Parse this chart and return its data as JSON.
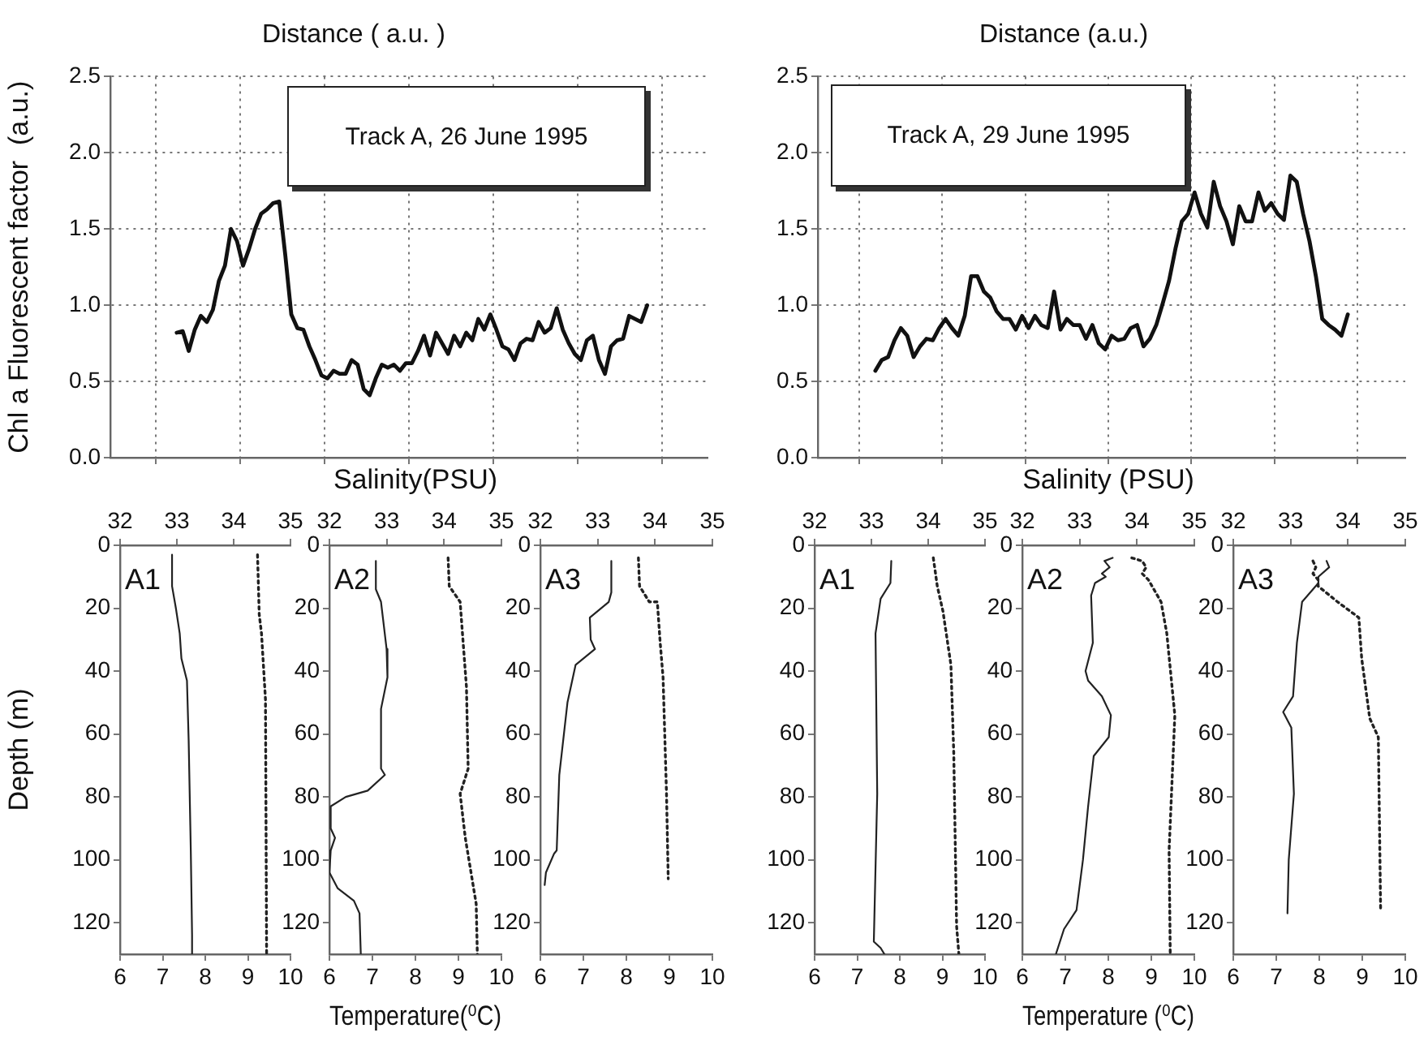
{
  "chart_data": [
    {
      "type": "line",
      "title": "Distance ( a.u. )",
      "ylabel": "Chl a Fluorescent factor  (a.u.)",
      "annotations": [
        "Track A, 26 June 1995"
      ],
      "ylim": [
        0,
        2.5
      ],
      "yticks": [
        {
          "value": 0,
          "label": "0.0"
        },
        {
          "value": 0.5,
          "label": "0.5"
        },
        {
          "value": 1,
          "label": "1.0"
        },
        {
          "value": 1.5,
          "label": "1.5"
        },
        {
          "value": 2,
          "label": "2.0"
        },
        {
          "value": 2.5,
          "label": "2.5"
        }
      ],
      "tick_labels": "y",
      "grid": true,
      "line_style": "solid",
      "categories": [
        null,
        null,
        null,
        null,
        null,
        null,
        null,
        null,
        null,
        null,
        null,
        null,
        null,
        null,
        null,
        null,
        null,
        null,
        null,
        null,
        null,
        null,
        null,
        null,
        null,
        null,
        null,
        null,
        null,
        null,
        null,
        null,
        null,
        null,
        null,
        null,
        null,
        null,
        null,
        null,
        null,
        null,
        null,
        null,
        null,
        null,
        null,
        null,
        null,
        null,
        null,
        null,
        null,
        null,
        null,
        null,
        null,
        null,
        null,
        null,
        null,
        null,
        null,
        null,
        null,
        null,
        null,
        null,
        null,
        null,
        null,
        null,
        null,
        null,
        null,
        null,
        null,
        null,
        null
      ],
      "series": [
        {
          "color": "#111111",
          "values": [
            0.82,
            0.83,
            0.7,
            0.84,
            0.93,
            0.89,
            0.97,
            1.16,
            1.26,
            1.5,
            1.42,
            1.26,
            1.37,
            1.5,
            1.6,
            1.63,
            1.67,
            1.68,
            1.33,
            0.94,
            0.85,
            0.84,
            0.73,
            0.64,
            0.54,
            0.52,
            0.57,
            0.55,
            0.55,
            0.64,
            0.61,
            0.45,
            0.41,
            0.52,
            0.61,
            0.59,
            0.61,
            0.57,
            0.62,
            0.62,
            0.7,
            0.8,
            0.67,
            0.82,
            0.75,
            0.68,
            0.8,
            0.73,
            0.82,
            0.77,
            0.91,
            0.84,
            0.94,
            0.84,
            0.73,
            0.71,
            0.64,
            0.75,
            0.78,
            0.77,
            0.89,
            0.82,
            0.85,
            0.98,
            0.84,
            0.75,
            0.68,
            0.64,
            0.77,
            0.8,
            0.64,
            0.55,
            0.73,
            0.77,
            0.78,
            0.93,
            0.91,
            0.89,
            1.0
          ]
        }
      ]
    },
    {
      "type": "line",
      "title": "Distance (a.u.)",
      "annotations": [
        "Track A, 29 June 1995"
      ],
      "ylim": [
        0,
        2.5
      ],
      "yticks": [
        {
          "value": 0,
          "label": "0.0"
        },
        {
          "value": 0.5,
          "label": "0.5"
        },
        {
          "value": 1,
          "label": "1.0"
        },
        {
          "value": 1.5,
          "label": "1.5"
        },
        {
          "value": 2,
          "label": "2.0"
        },
        {
          "value": 2.5,
          "label": "2.5"
        }
      ],
      "tick_labels": "y",
      "grid": true,
      "line_style": "solid",
      "categories": [
        null,
        null,
        null,
        null,
        null,
        null,
        null,
        null,
        null,
        null,
        null,
        null,
        null,
        null,
        null,
        null,
        null,
        null,
        null,
        null,
        null,
        null,
        null,
        null,
        null,
        null,
        null,
        null,
        null,
        null,
        null,
        null,
        null,
        null,
        null,
        null,
        null,
        null,
        null,
        null,
        null,
        null,
        null,
        null,
        null,
        null,
        null,
        null,
        null,
        null,
        null,
        null,
        null,
        null,
        null,
        null,
        null,
        null,
        null,
        null,
        null,
        null,
        null,
        null,
        null,
        null,
        null,
        null,
        null,
        null,
        null,
        null,
        null,
        null,
        null
      ],
      "series": [
        {
          "color": "#111111",
          "values": [
            0.57,
            0.64,
            0.66,
            0.77,
            0.85,
            0.8,
            0.66,
            0.73,
            0.78,
            0.77,
            0.85,
            0.91,
            0.85,
            0.8,
            0.93,
            1.19,
            1.19,
            1.09,
            1.05,
            0.96,
            0.91,
            0.91,
            0.84,
            0.93,
            0.85,
            0.93,
            0.87,
            0.85,
            1.09,
            0.84,
            0.91,
            0.87,
            0.87,
            0.78,
            0.87,
            0.75,
            0.71,
            0.8,
            0.77,
            0.78,
            0.85,
            0.87,
            0.73,
            0.78,
            0.87,
            1.01,
            1.16,
            1.37,
            1.55,
            1.6,
            1.74,
            1.6,
            1.51,
            1.81,
            1.65,
            1.55,
            1.4,
            1.65,
            1.55,
            1.55,
            1.74,
            1.62,
            1.67,
            1.6,
            1.56,
            1.85,
            1.81,
            1.6,
            1.42,
            1.19,
            0.91,
            0.87,
            0.84,
            0.8,
            0.94
          ]
        }
      ]
    },
    {
      "type": "line",
      "ylabel": "Depth (m)",
      "annotations": [
        "A1"
      ],
      "xlim": [
        6,
        10
      ],
      "xticks": [
        6,
        7,
        8,
        9,
        10
      ],
      "x2lim": [
        32,
        35
      ],
      "x2ticks": [
        32,
        33,
        34,
        35
      ],
      "ylim": [
        130,
        0
      ],
      "yticks": [
        0,
        20,
        40,
        60,
        80,
        100,
        120
      ],
      "series": [
        {
          "color": "#222222",
          "line_style": "solid",
          "x": [
            7.22,
            7.22,
            7.31,
            7.4,
            7.44,
            7.57,
            7.61,
            7.66,
            7.69,
            7.69
          ],
          "values": [
            3,
            13,
            20,
            28,
            36,
            43,
            62,
            97,
            124,
            130
          ]
        },
        {
          "color": "#222222",
          "line_style": "dotted",
          "axis": "x2",
          "x": [
            34.42,
            34.45,
            34.49,
            34.56,
            34.58
          ],
          "values": [
            3,
            22,
            28,
            49,
            130
          ]
        }
      ]
    },
    {
      "type": "line",
      "xlabel": "Temperature(⁰C)",
      "x2label": "Salinity(PSU)",
      "annotations": [
        "A2"
      ],
      "xlim": [
        6,
        10
      ],
      "xticks": [
        6,
        7,
        8,
        9,
        10
      ],
      "x2lim": [
        32,
        35
      ],
      "x2ticks": [
        32,
        33,
        34,
        35
      ],
      "ylim": [
        130,
        0
      ],
      "yticks": [
        0,
        20,
        40,
        60,
        80,
        100,
        120
      ],
      "series": [
        {
          "color": "#222222",
          "line_style": "solid",
          "x": [
            7.08,
            7.08,
            7.2,
            7.33,
            7.35,
            7.2,
            7.2,
            7.29,
            6.89,
            6.38,
            6.03,
            6.03,
            6.13,
            6.03,
            6.0,
            6.19,
            6.57,
            6.7,
            6.73
          ],
          "values": [
            5,
            14,
            18,
            33,
            42,
            52,
            71,
            73,
            78,
            80,
            83,
            90,
            93,
            97,
            104,
            109,
            113,
            117,
            130
          ]
        },
        {
          "color": "#222222",
          "line_style": "dotted",
          "axis": "x2",
          "x": [
            34.07,
            34.09,
            34.28,
            34.3,
            34.39,
            34.42,
            34.28,
            34.37,
            34.56,
            34.58
          ],
          "values": [
            4,
            13,
            18,
            23,
            45,
            71,
            79,
            93,
            114,
            130
          ]
        }
      ]
    },
    {
      "type": "line",
      "annotations": [
        "A3"
      ],
      "xlim": [
        6,
        10
      ],
      "xticks": [
        6,
        7,
        8,
        9,
        10
      ],
      "x2lim": [
        32,
        35
      ],
      "x2ticks": [
        32,
        33,
        34,
        35
      ],
      "ylim": [
        130,
        0
      ],
      "yticks": [
        0,
        20,
        40,
        60,
        80,
        100,
        120
      ],
      "series": [
        {
          "color": "#222222",
          "line_style": "solid",
          "x": [
            7.65,
            7.65,
            7.59,
            7.15,
            7.17,
            7.27,
            6.82,
            6.63,
            6.44,
            6.38,
            6.32,
            6.13,
            6.1
          ],
          "values": [
            5,
            15,
            18,
            23,
            30,
            33,
            38,
            50,
            73,
            97,
            98,
            104,
            108
          ]
        },
        {
          "color": "#222222",
          "line_style": "dotted",
          "axis": "x2",
          "x": [
            33.71,
            33.73,
            33.9,
            34.04,
            34.09,
            34.14,
            34.2,
            34.23
          ],
          "values": [
            4,
            13,
            18,
            18,
            31,
            42,
            79,
            106
          ]
        }
      ]
    },
    {
      "type": "line",
      "annotations": [
        "A1"
      ],
      "xlim": [
        6,
        10
      ],
      "xticks": [
        6,
        7,
        8,
        9,
        10
      ],
      "x2lim": [
        32,
        35
      ],
      "x2ticks": [
        32,
        33,
        34,
        35
      ],
      "ylim": [
        130,
        0
      ],
      "yticks": [
        0,
        20,
        40,
        60,
        80,
        100,
        120
      ],
      "series": [
        {
          "color": "#222222",
          "line_style": "solid",
          "x": [
            7.8,
            7.78,
            7.55,
            7.43,
            7.47,
            7.39,
            7.55,
            7.64
          ],
          "values": [
            5,
            12,
            17,
            28,
            79,
            126,
            128,
            130
          ]
        },
        {
          "color": "#222222",
          "line_style": "dotted",
          "axis": "x2",
          "x": [
            34.09,
            34.16,
            34.26,
            34.4,
            34.45,
            34.5,
            34.54
          ],
          "values": [
            4,
            13,
            21,
            38,
            66,
            121,
            130
          ]
        }
      ]
    },
    {
      "type": "line",
      "xlabel": "Temperature (⁰C)",
      "x2label": "Salinity (PSU)",
      "annotations": [
        "A2"
      ],
      "xlim": [
        6,
        10
      ],
      "xticks": [
        6,
        7,
        8,
        9,
        10
      ],
      "x2lim": [
        32,
        35
      ],
      "x2ticks": [
        32,
        33,
        34,
        35
      ],
      "ylim": [
        130,
        0
      ],
      "yticks": [
        0,
        20,
        40,
        60,
        80,
        100,
        120
      ],
      "series": [
        {
          "color": "#222222",
          "line_style": "solid",
          "x": [
            8.1,
            7.91,
            8.03,
            7.85,
            7.94,
            7.69,
            7.6,
            7.64,
            7.47,
            7.53,
            7.85,
            8.06,
            8.01,
            7.66,
            7.53,
            7.41,
            7.26,
            6.97,
            6.78
          ],
          "values": [
            4,
            5,
            7,
            9,
            10,
            12,
            16,
            31,
            40,
            43,
            48,
            54,
            61,
            67,
            83,
            100,
            116,
            122,
            130
          ]
        },
        {
          "color": "#222222",
          "line_style": "dotted",
          "axis": "x2",
          "x": [
            33.91,
            34.09,
            34.16,
            34.09,
            34.2,
            34.42,
            34.52,
            34.66,
            34.56,
            34.58
          ],
          "values": [
            4,
            5,
            7,
            9,
            11,
            18,
            28,
            54,
            97,
            130
          ]
        }
      ]
    },
    {
      "type": "line",
      "annotations": [
        "A3"
      ],
      "xlim": [
        6,
        10
      ],
      "xticks": [
        6,
        7,
        8,
        9,
        10
      ],
      "x2lim": [
        32,
        35
      ],
      "x2ticks": [
        32,
        33,
        34,
        35
      ],
      "ylim": [
        130,
        0
      ],
      "yticks": [
        0,
        20,
        40,
        60,
        80,
        100,
        120
      ],
      "series": [
        {
          "color": "#222222",
          "line_style": "solid",
          "x": [
            8.17,
            8.23,
            7.98,
            7.98,
            7.6,
            7.48,
            7.39,
            7.16,
            7.35,
            7.41,
            7.29,
            7.26
          ],
          "values": [
            5,
            7,
            10,
            12,
            18,
            31,
            48,
            53,
            58,
            79,
            100,
            117
          ]
        },
        {
          "color": "#222222",
          "line_style": "dotted",
          "axis": "x2",
          "x": [
            33.39,
            33.44,
            33.39,
            33.48,
            33.48,
            33.82,
            34.19,
            34.24,
            34.38,
            34.53,
            34.57
          ],
          "values": [
            5,
            7,
            9,
            11,
            13,
            18,
            23,
            36,
            55,
            61,
            116
          ]
        }
      ]
    }
  ]
}
